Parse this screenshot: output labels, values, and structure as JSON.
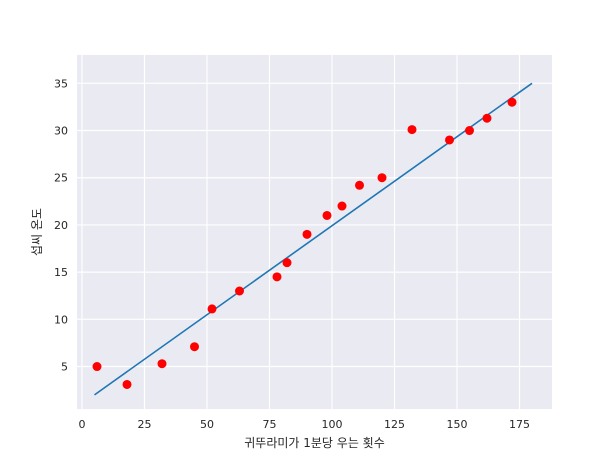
{
  "chart_data": {
    "type": "scatter",
    "title": "",
    "xlabel": "귀뚜라미가 1분당 우는 횟수",
    "ylabel": "섭씨 온도",
    "xlim": [
      -2,
      188
    ],
    "ylim": [
      0.5,
      38
    ],
    "x_ticks": [
      0,
      25,
      50,
      75,
      100,
      125,
      150,
      175
    ],
    "y_ticks": [
      5,
      10,
      15,
      20,
      25,
      30,
      35
    ],
    "grid": true,
    "points": {
      "color": "#ff0000",
      "x": [
        6,
        18,
        32,
        45,
        52,
        63,
        78,
        82,
        90,
        98,
        104,
        111,
        120,
        132,
        147,
        155,
        162,
        172
      ],
      "y": [
        5.0,
        3.1,
        5.3,
        7.1,
        11.1,
        13.0,
        14.5,
        16.0,
        19.0,
        21.0,
        22.0,
        24.2,
        25.0,
        30.1,
        29.0,
        30.0,
        31.3,
        33.0
      ]
    },
    "fit_line": {
      "color": "#1f77b4",
      "x": [
        5,
        180
      ],
      "y": [
        2.0,
        35.0
      ]
    }
  }
}
